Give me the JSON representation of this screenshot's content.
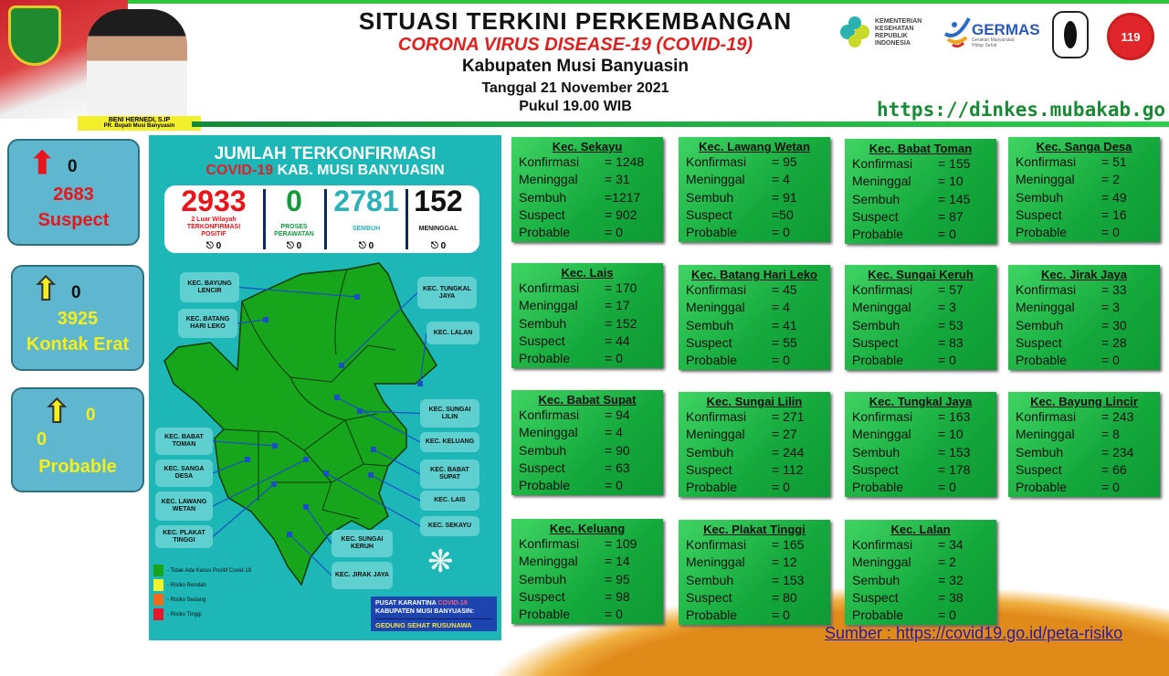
{
  "header": {
    "title": "SITUASI TERKINI PERKEMBANGAN",
    "subtitle": "CORONA VIRUS DISEASE-19 (COVID-19)",
    "region": "Kabupaten Musi Banyuasin",
    "date": "Tanggal 21 November 2021",
    "time": "Pukul 19.00 WIB",
    "official_name": "BENI HERNEDI, S.IP",
    "official_title": "PR. Bupati Musi Banyuasin",
    "website": "https://dinkes.mubakab.go.id",
    "logos": {
      "kemenkes": "KEMENTERIAN KESEHATAN REPUBLIK INDONESIA",
      "germas": "GERMAS",
      "germas_sub": "Gerakan Masyarakat Hidup Sehat",
      "surveilans": "SURVEILANS EPIDEMIOLOGI",
      "ambulance": "119"
    }
  },
  "left_panels": [
    {
      "delta": "0",
      "value": "2683",
      "label": "Suspect",
      "arrow_color": "#e8161b",
      "value_color": "#e8161b"
    },
    {
      "delta": "0",
      "value": "3925",
      "label": "Kontak Erat",
      "arrow_color": "#f4ee1c",
      "value_color": "#f4ee1c"
    },
    {
      "delta": "0",
      "value": "0",
      "label": "Probable",
      "arrow_color": "#f4ee1c",
      "value_color": "#f4ee1c"
    }
  ],
  "map": {
    "title_line1": "JUMLAH TERKONFIRMASI",
    "title_covid": "COVID-19",
    "title_line2": "KAB. MUSI BANYUASIN",
    "stats": [
      {
        "value": "2933",
        "label1": "2 Luar Wilayah",
        "label2": "TERKONFIRMASI POSITIF",
        "change": "0",
        "color": "#e8161b"
      },
      {
        "value": "0",
        "label1": "",
        "label2": "PROSES PERAWATAN",
        "change": "0",
        "color": "#149a3c"
      },
      {
        "value": "2781",
        "label1": "",
        "label2": "SEMBUH",
        "change": "0",
        "color": "#2ab0b8"
      },
      {
        "value": "152",
        "label1": "",
        "label2": "MENINGGAL",
        "change": "0",
        "color": "#111111"
      }
    ],
    "labels": [
      "KEC. BAYUNG LENCIR",
      "KEC. BATANG HARI LEKO",
      "KEC. TUNGKAL JAYA",
      "KEC. LALAN",
      "KEC. SUNGAI LILIN",
      "KEC. KELUANG",
      "KEC. BABAT SUPAT",
      "KEC. LAIS",
      "KEC. SEKAYU",
      "KEC. BABAT TOMAN",
      "KEC. SANGA DESA",
      "KEC. LAWANG WETAN",
      "KEC. PLAKAT TINGGI",
      "KEC. SUNGAI KERUH",
      "KEC. JIRAK JAYA"
    ],
    "legend": [
      {
        "label": "- Tidak Ada Kasus Positif Covid-19",
        "color": "#17a51c"
      },
      {
        "label": "- Risiko Rendah",
        "color": "#f4f32a"
      },
      {
        "label": "- Risiko Sedang",
        "color": "#f26a1c"
      },
      {
        "label": "- Risiko Tinggi",
        "color": "#e8162b"
      }
    ],
    "karantina": {
      "line1": "PUSAT KARANTINA",
      "covid": "COVID-19",
      "line2": "KABUPATEN MUSI BANYUASIN:",
      "line3": "GEDUNG SEHAT RUSUNAWA"
    }
  },
  "card_labels": {
    "konfirmasi": "Konfirmasi",
    "meninggal": "Meninggal",
    "sembuh": "Sembuh",
    "suspect": "Suspect",
    "probable": "Probable"
  },
  "districts": [
    {
      "name": "Kec. Sekayu",
      "konfirmasi": "= 1248",
      "meninggal": "= 31",
      "sembuh": "=1217",
      "suspect": "= 902",
      "probable": "= 0"
    },
    {
      "name": "Kec. Lawang Wetan",
      "konfirmasi": "= 95",
      "meninggal": "= 4",
      "sembuh": "= 91",
      "suspect": "=50",
      "probable": "= 0"
    },
    {
      "name": "Kec. Babat Toman",
      "konfirmasi": "= 155",
      "meninggal": "= 10",
      "sembuh": "= 145",
      "suspect": "= 87",
      "probable": "= 0"
    },
    {
      "name": "Kec. Sanga Desa",
      "konfirmasi": "= 51",
      "meninggal": "= 2",
      "sembuh": "= 49",
      "suspect": "= 16",
      "probable": "= 0"
    },
    {
      "name": "Kec. Lais",
      "konfirmasi": "= 170",
      "meninggal": "= 17",
      "sembuh": "= 152",
      "suspect": "= 44",
      "probable": "= 0"
    },
    {
      "name": "Kec. Batang Hari Leko",
      "konfirmasi": "= 45",
      "meninggal": "= 4",
      "sembuh": "= 41",
      "suspect": "= 55",
      "probable": "= 0"
    },
    {
      "name": "Kec. Sungai Keruh",
      "konfirmasi": "= 57",
      "meninggal": "= 3",
      "sembuh": "= 53",
      "suspect": "= 83",
      "probable": "= 0"
    },
    {
      "name": "Kec. Jirak Jaya",
      "konfirmasi": "= 33",
      "meninggal": "= 3",
      "sembuh": "= 30",
      "suspect": "= 28",
      "probable": "= 0"
    },
    {
      "name": "Kec. Babat Supat",
      "konfirmasi": "= 94",
      "meninggal": "= 4",
      "sembuh": "=  90",
      "suspect": "= 63",
      "probable": "= 0"
    },
    {
      "name": "Kec. Sungai Lilin",
      "konfirmasi": "= 271",
      "meninggal": "= 27",
      "sembuh": "= 244",
      "suspect": "= 112",
      "probable": "= 0"
    },
    {
      "name": "Kec. Tungkal Jaya",
      "konfirmasi": "= 163",
      "meninggal": "= 10",
      "sembuh": "= 153",
      "suspect": "= 178",
      "probable": "= 0"
    },
    {
      "name": "Kec. Bayung Lincir",
      "konfirmasi": "= 243",
      "meninggal": "= 8",
      "sembuh": "= 234",
      "suspect": "= 66",
      "probable": "= 0"
    },
    {
      "name": "Kec. Keluang",
      "konfirmasi": "=  109",
      "meninggal": "= 14",
      "sembuh": "= 95",
      "suspect": "= 98",
      "probable": "= 0"
    },
    {
      "name": "Kec. Plakat Tinggi",
      "konfirmasi": "= 165",
      "meninggal": "= 12",
      "sembuh": "= 153",
      "suspect": "= 80",
      "probable": "= 0"
    },
    {
      "name": "Kec. Lalan",
      "konfirmasi": "= 34",
      "meninggal": "= 2",
      "sembuh": "= 32",
      "suspect": "= 38",
      "probable": "= 0"
    }
  ],
  "source": "Sumber : https://covid19.go.id/peta-risiko"
}
